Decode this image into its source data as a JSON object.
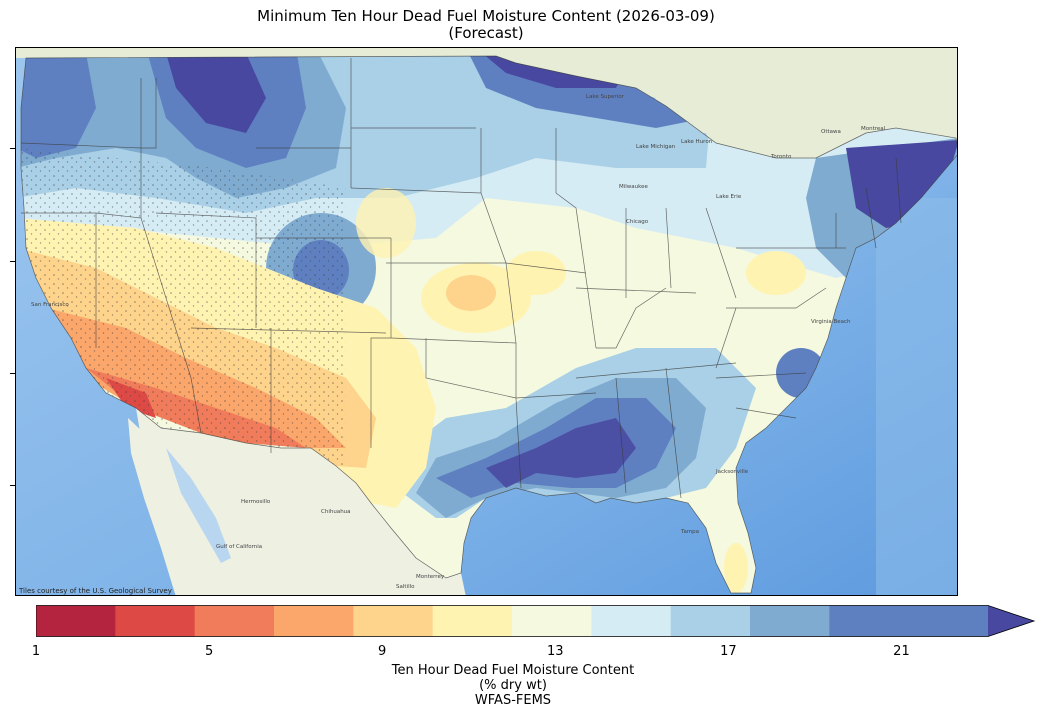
{
  "title": {
    "line1": "Minimum Ten Hour Dead Fuel Moisture Content (2026-03-09)",
    "line2": "(Forecast)"
  },
  "map": {
    "attribution": "Tiles courtesy of the U.S. Geological Survey",
    "palette": {
      "ocean": "#7fb3e8",
      "ocean_light": "#cfe3f7",
      "land_base": "#e9efdc",
      "canada": "#e6ecd8",
      "mexico": "#eef0e4",
      "lakes": "#a9cfee",
      "state_lines": "#3a3a3a"
    },
    "place_labels": [
      "Ottawa",
      "Montreal",
      "Toronto",
      "Lake Superior",
      "Lake Michigan",
      "Lake Huron",
      "Lake Erie",
      "Milwaukee",
      "Chicago",
      "Gulf of California",
      "Hermosillo",
      "Chihuahua",
      "Monterrey",
      "Saltillo",
      "Tampa",
      "Jacksonville",
      "Virginia Beach",
      "San Francisco"
    ]
  },
  "colorbar": {
    "colors": [
      "#b5243f",
      "#dd4a45",
      "#f07c5b",
      "#fba76b",
      "#fed38b",
      "#fff3b2",
      "#f4f9df",
      "#d6ecf4",
      "#a9d0e6",
      "#80abd1",
      "#5f80c0",
      "#4848a0"
    ],
    "tick_labels": [
      "1",
      "5",
      "9",
      "13",
      "17",
      "21"
    ],
    "tick_values": [
      1,
      5,
      9,
      13,
      17,
      21
    ],
    "min": 1,
    "max": 23,
    "extend": "max",
    "caption_line1": "Ten Hour Dead Fuel Moisture Content",
    "caption_line2": "(% dry wt)",
    "caption_line3": "WFAS-FEMS"
  }
}
